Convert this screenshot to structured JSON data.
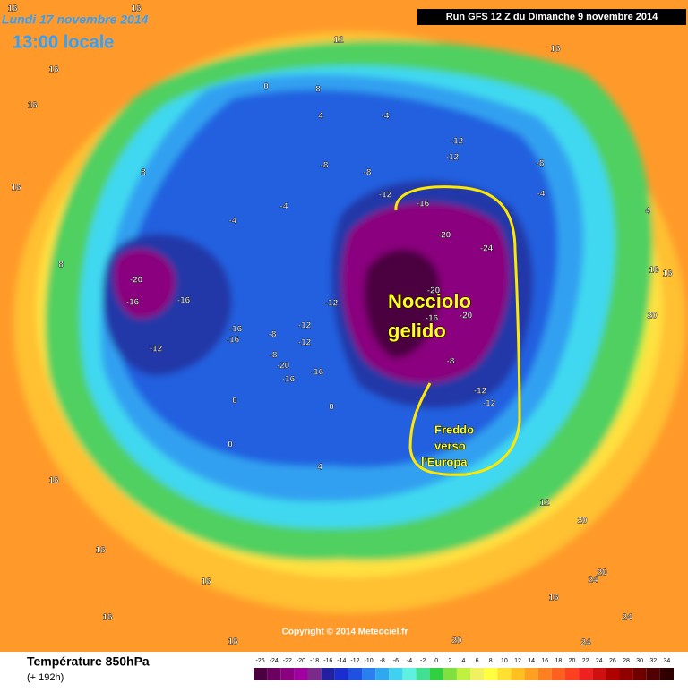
{
  "header": {
    "date": "Lundi 17 novembre 2014",
    "time": "13:00 locale",
    "run": "Run GFS 12 Z du Dimanche 9 novembre 2014"
  },
  "footer": {
    "title": "Température 850hPa",
    "lead": "(+ 192h)",
    "copyright": "Copyright © 2014 Meteociel.fr"
  },
  "annotations": {
    "core": [
      "Nocciolo",
      "gelido"
    ],
    "flow": [
      "Freddo",
      "verso",
      "l'Europa"
    ]
  },
  "scale": {
    "ticks": [
      -26,
      -24,
      -22,
      -20,
      -18,
      -16,
      -14,
      -12,
      -10,
      -8,
      -6,
      -4,
      -2,
      0,
      2,
      4,
      6,
      8,
      10,
      12,
      14,
      16,
      18,
      20,
      22,
      24,
      26,
      28,
      30,
      32,
      34
    ],
    "colors": [
      "#4b0040",
      "#6b0060",
      "#8a007e",
      "#a000a0",
      "#7a2a8a",
      "#2020a0",
      "#1a2ed0",
      "#2050e0",
      "#2a7ef0",
      "#30a8f0",
      "#40d0f0",
      "#60f0e0",
      "#40e090",
      "#30d040",
      "#80e040",
      "#c0f040",
      "#f0f060",
      "#ffff40",
      "#ffe030",
      "#ffc020",
      "#ffa020",
      "#ff8020",
      "#ff6020",
      "#ff4020",
      "#f02020",
      "#d01010",
      "#b00000",
      "#900000",
      "#700000",
      "#500000",
      "#300000"
    ]
  },
  "contour_labels": [
    16,
    16,
    12,
    16,
    16,
    16,
    8,
    0,
    4,
    -4,
    8,
    16,
    -12,
    -12,
    -8,
    -8,
    -8,
    -12,
    -16,
    -4,
    4,
    -4,
    -4,
    -20,
    -24,
    8,
    -20,
    -16,
    -16,
    -20,
    -20,
    -16,
    -12,
    -12,
    -16,
    -16,
    -12,
    -8,
    -8,
    -20,
    -16,
    -16,
    -8,
    -12,
    -12,
    -12,
    0,
    0,
    0,
    4,
    16,
    16,
    20,
    12,
    16,
    16,
    16,
    16,
    20,
    24,
    24,
    24,
    20,
    16,
    20,
    16
  ]
}
